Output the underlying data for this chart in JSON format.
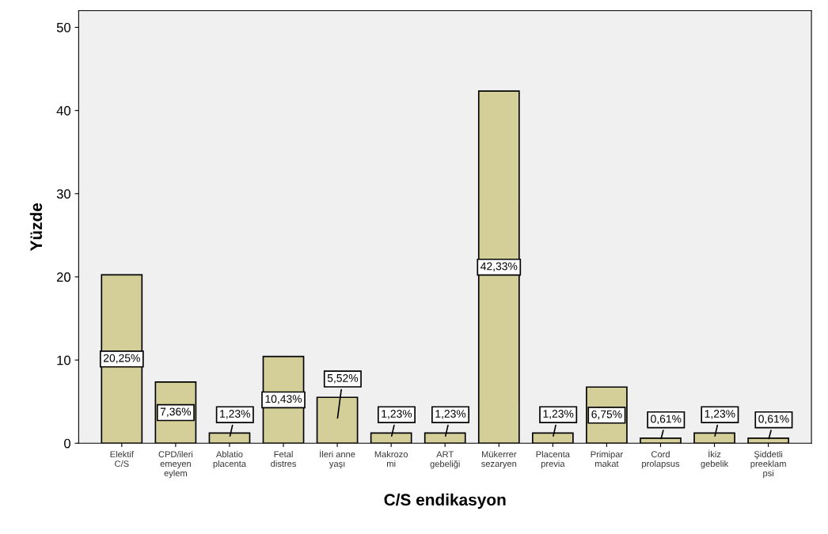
{
  "chart_data": {
    "type": "bar",
    "xlabel": "C/S endikasyon",
    "ylabel": "Yüzde",
    "categories": [
      "Elektif\nC/S",
      "CPD/ileri\nemeyen\neylem",
      "Ablatio\nplacenta",
      "Fetal\ndistres",
      "İleri anne\nyaşı",
      "Makrozo\nmi",
      "ART\ngebeliği",
      "Mükerrer\nsezaryen",
      "Placenta\nprevia",
      "Primipar\nmakat",
      "Cord\nprolapsus",
      "İkiz\ngebelik",
      "Şiddetli\npreeklam\npsi"
    ],
    "values": [
      20.25,
      7.36,
      1.23,
      10.43,
      5.52,
      1.23,
      1.23,
      42.33,
      1.23,
      6.75,
      0.61,
      1.23,
      0.61
    ],
    "value_labels": [
      "20,25%",
      "7,36%",
      "1,23%",
      "10,43%",
      "5,52%",
      "1,23%",
      "1,23%",
      "42,33%",
      "1,23%",
      "6,75%",
      "0,61%",
      "1,23%",
      "0,61%"
    ],
    "color": "#d4cf98",
    "ylim": [
      0,
      52
    ],
    "yticks": [
      0,
      10,
      20,
      30,
      40,
      50
    ],
    "grid": false,
    "legend": false
  }
}
